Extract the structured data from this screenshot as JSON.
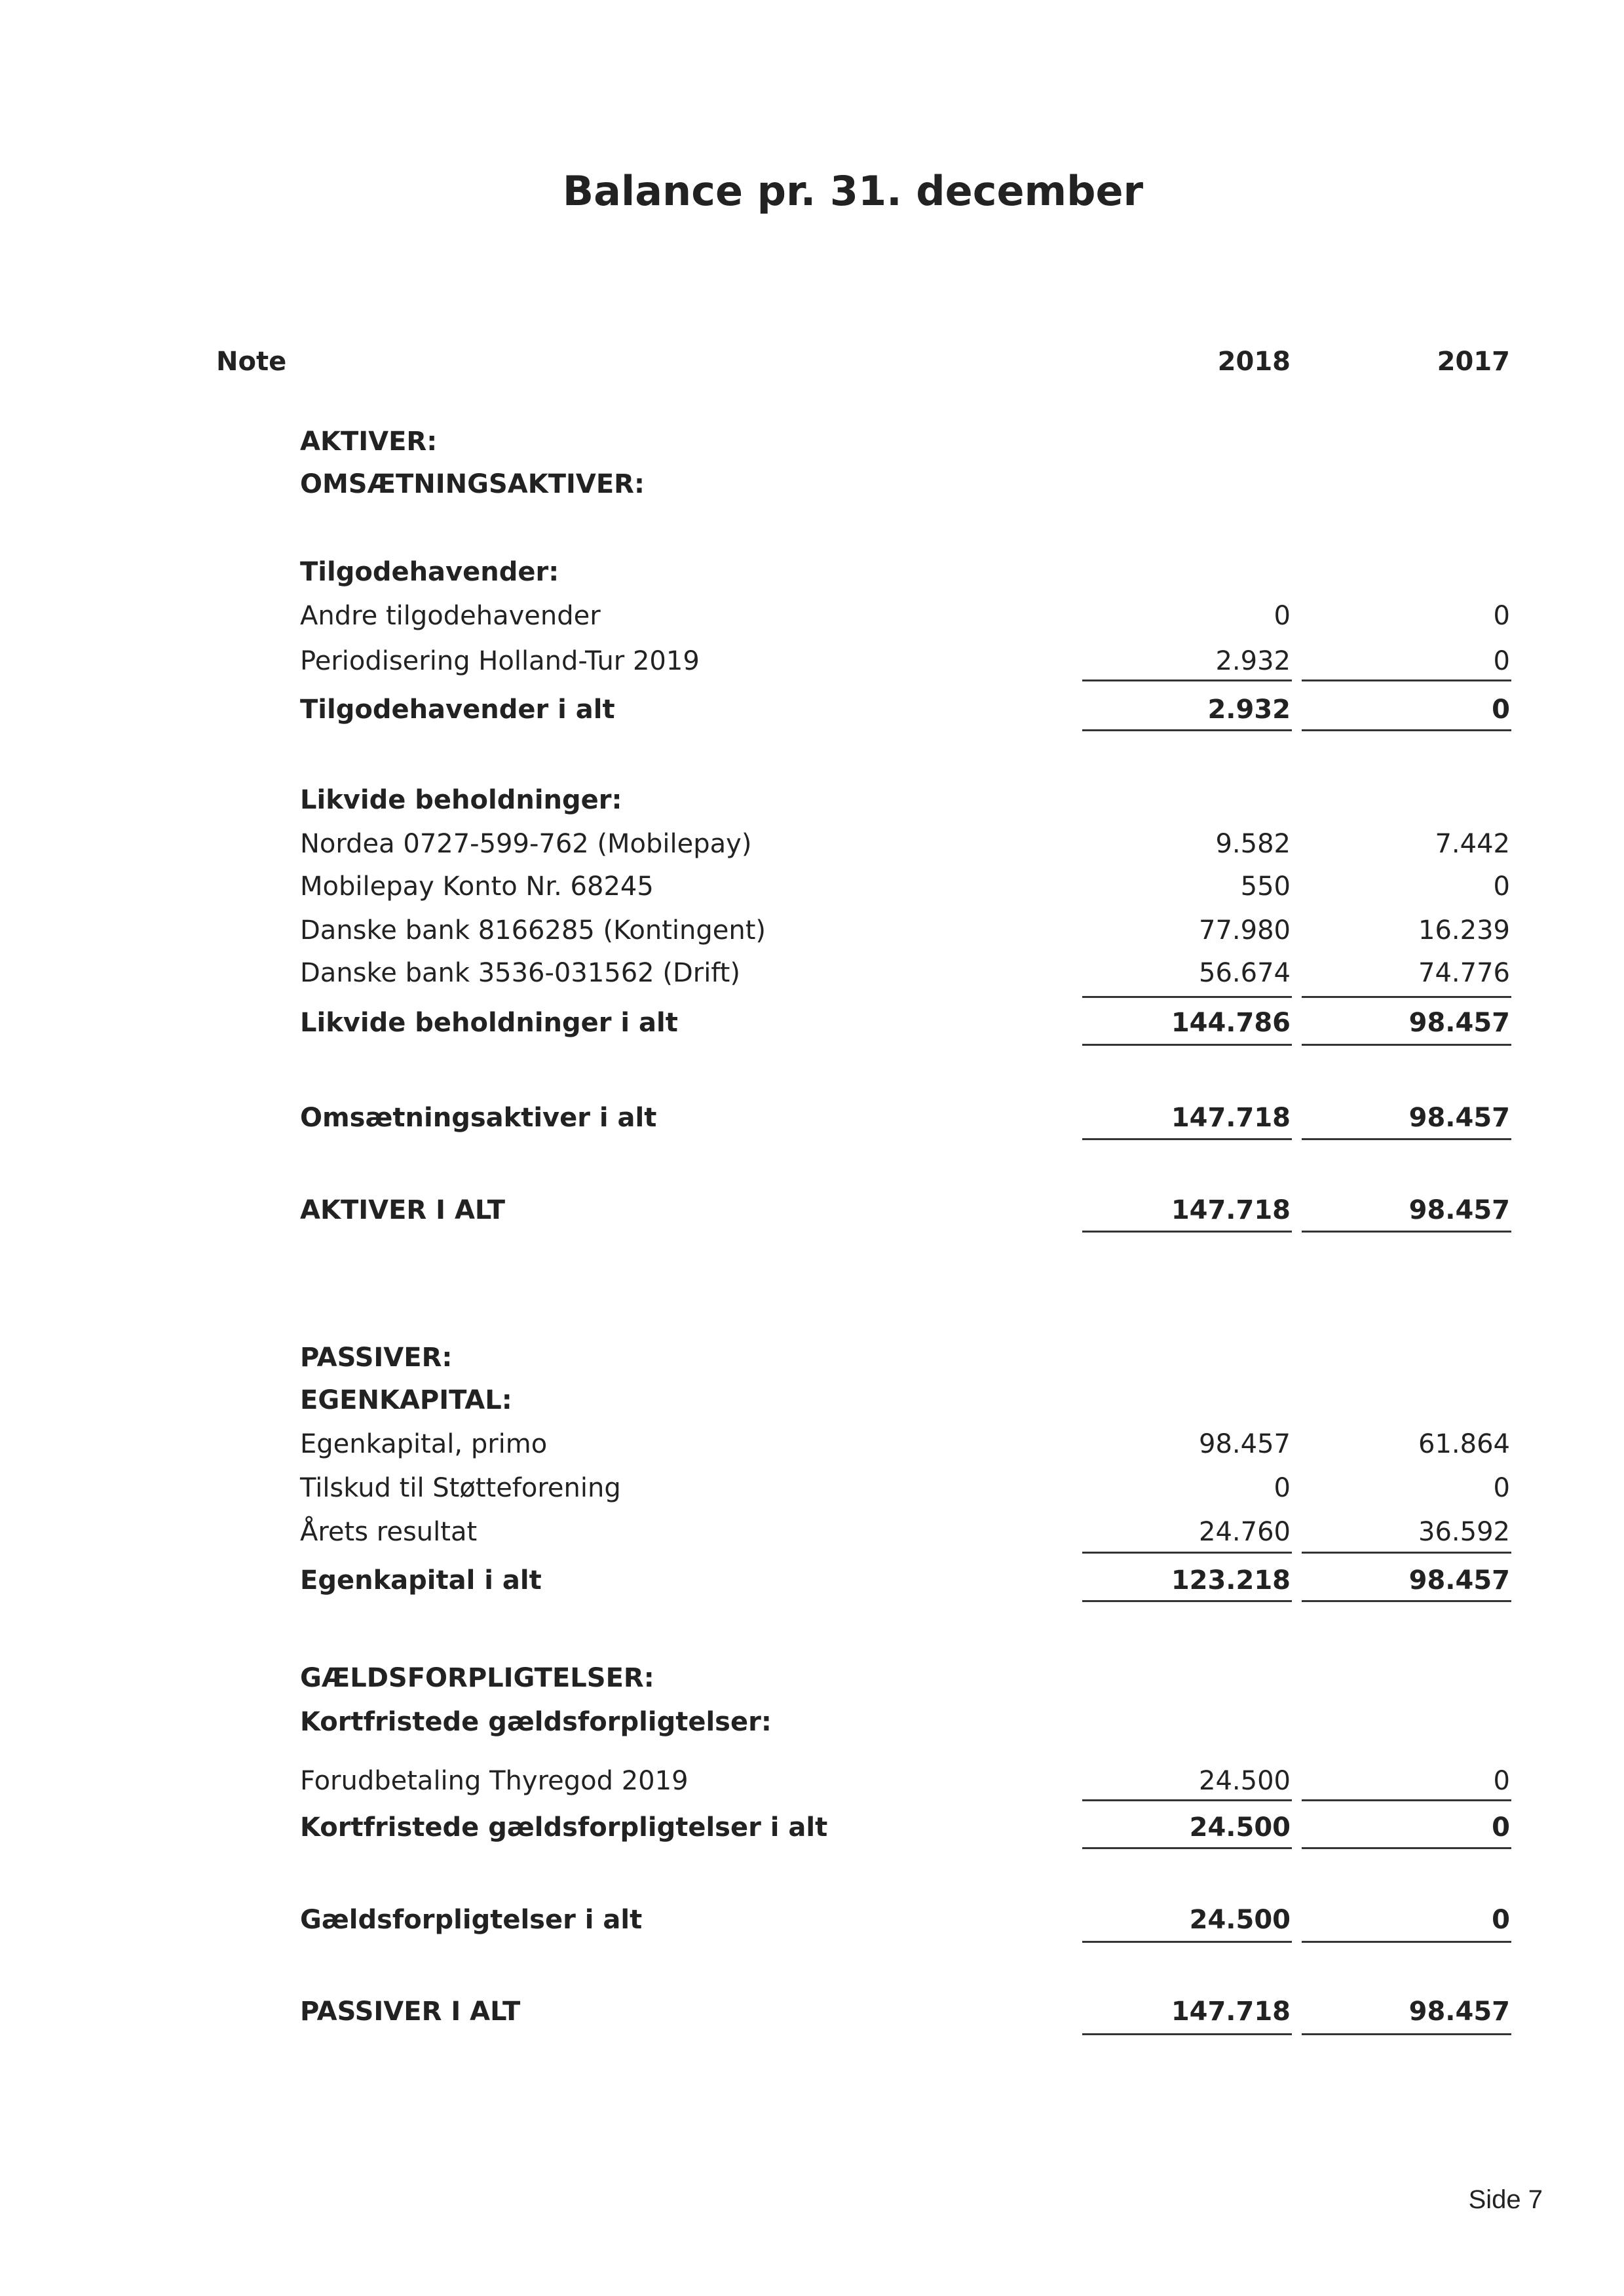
{
  "title": "Balance pr. 31. december",
  "header": {
    "note": "Note",
    "col1": "2018",
    "col2": "2017"
  },
  "aktiver": {
    "heading": "AKTIVER:",
    "subheading": "OMSÆTNINGSAKTIVER:",
    "tilgodehavender": {
      "heading": "Tilgodehavender:",
      "rows": [
        {
          "label": "Andre tilgodehavender",
          "y2018": "0",
          "y2017": "0"
        },
        {
          "label": "Periodisering Holland-Tur 2019",
          "y2018": "2.932",
          "y2017": "0"
        }
      ],
      "total": {
        "label": "Tilgodehavender i alt",
        "y2018": "2.932",
        "y2017": "0"
      }
    },
    "likvide": {
      "heading": "Likvide beholdninger:",
      "rows": [
        {
          "label": "Nordea 0727-599-762 (Mobilepay)",
          "y2018": "9.582",
          "y2017": "7.442"
        },
        {
          "label": "Mobilepay Konto Nr. 68245",
          "y2018": "550",
          "y2017": "0"
        },
        {
          "label": "Danske bank 8166285 (Kontingent)",
          "y2018": "77.980",
          "y2017": "16.239"
        },
        {
          "label": "Danske bank 3536-031562 (Drift)",
          "y2018": "56.674",
          "y2017": "74.776"
        }
      ],
      "total": {
        "label": "Likvide beholdninger i alt",
        "y2018": "144.786",
        "y2017": "98.457"
      }
    },
    "omsaetning_total": {
      "label": "Omsætningsaktiver i alt",
      "y2018": "147.718",
      "y2017": "98.457"
    },
    "total": {
      "label": "AKTIVER I ALT",
      "y2018": "147.718",
      "y2017": "98.457"
    }
  },
  "passiver": {
    "heading": "PASSIVER:",
    "egenkapital": {
      "heading": "EGENKAPITAL:",
      "rows": [
        {
          "label": "Egenkapital, primo",
          "y2018": "98.457",
          "y2017": "61.864"
        },
        {
          "label": "Tilskud til Støtteforening",
          "y2018": "0",
          "y2017": "0"
        },
        {
          "label": "Årets resultat",
          "y2018": "24.760",
          "y2017": "36.592"
        }
      ],
      "total": {
        "label": "Egenkapital i alt",
        "y2018": "123.218",
        "y2017": "98.457"
      }
    },
    "gaeld": {
      "heading": "GÆLDSFORPLIGTELSER:",
      "subheading": "Kortfristede gældsforpligtelser:",
      "rows": [
        {
          "label": "Forudbetaling Thyregod 2019",
          "y2018": "24.500",
          "y2017": "0"
        }
      ],
      "total": {
        "label": "Kortfristede gældsforpligtelser i alt",
        "y2018": "24.500",
        "y2017": "0"
      },
      "grand_total": {
        "label": "Gældsforpligtelser i alt",
        "y2018": "24.500",
        "y2017": "0"
      }
    },
    "total": {
      "label": "PASSIVER I ALT",
      "y2018": "147.718",
      "y2017": "98.457"
    }
  },
  "footer": {
    "page": "Side 7"
  }
}
